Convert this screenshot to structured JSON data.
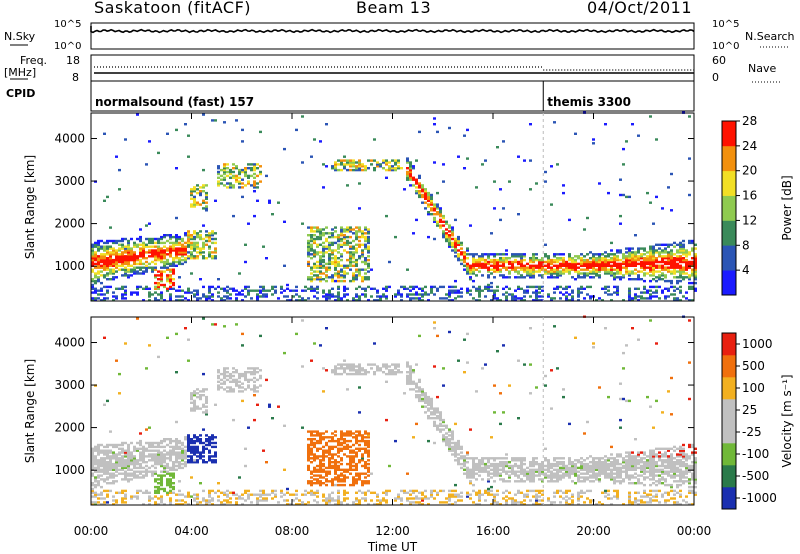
{
  "header": {
    "site": "Saskatoon (fitACF)",
    "beam": "Beam 13",
    "date": "04/Oct/2011"
  },
  "top_strip": {
    "left_label": "N.Sky",
    "right_label": "N.Search",
    "y_tick_top": "10^5",
    "y_tick_bottom": "10^0",
    "right_tick_top": "10^5",
    "right_tick_bottom": "10^0"
  },
  "freq_strip": {
    "left_label_line1": "Freq.",
    "left_label_line2": "[MHz]",
    "left_tick_top": "18",
    "left_tick_bottom": "8",
    "right_label": "Nave",
    "right_tick_top": "60",
    "right_tick_bottom": "0"
  },
  "cpid_strip": {
    "label": "CPID",
    "segments": [
      {
        "text": "normalsound (fast) 157",
        "start_hour": 0
      },
      {
        "text": "themis 3300",
        "start_hour": 18
      }
    ]
  },
  "chart_data": [
    {
      "type": "heatmap",
      "quantity": "Power",
      "ylabel": "Slant Range [km]",
      "xlabel": "Time UT",
      "xlim": [
        0,
        24
      ],
      "ylim": [
        180,
        4600
      ],
      "x_ticks": [
        "00:00",
        "04:00",
        "08:00",
        "12:00",
        "16:00",
        "20:00",
        "00:00"
      ],
      "y_ticks": [
        1000,
        2000,
        3000,
        4000
      ],
      "colorbar": {
        "label": "Power [dB]",
        "ticks": [
          "4",
          "8",
          "12",
          "16",
          "20",
          "24",
          "28"
        ],
        "colors": [
          "#1b1bff",
          "#2b55b5",
          "#3a8a5a",
          "#8fca50",
          "#f2df25",
          "#f2900d",
          "#ff1200"
        ]
      }
    },
    {
      "type": "heatmap",
      "quantity": "Velocity",
      "ylabel": "Slant Range [km]",
      "xlabel": "Time UT",
      "xlim": [
        0,
        24
      ],
      "ylim": [
        180,
        4600
      ],
      "x_ticks": [
        "00:00",
        "04:00",
        "08:00",
        "12:00",
        "16:00",
        "20:00",
        "00:00"
      ],
      "y_ticks": [
        1000,
        2000,
        3000,
        4000
      ],
      "colorbar": {
        "label": "Velocity [m s⁻¹]",
        "ticks": [
          "1000",
          "500",
          "100",
          "25",
          "-25",
          "-100",
          "-500",
          "-1000"
        ],
        "colors": [
          "#1a2fb0",
          "#2a7a4a",
          "#70b838",
          "#c0c0c0",
          "#c0c0c0",
          "#f2b020",
          "#f0700d",
          "#e82010"
        ]
      }
    }
  ]
}
